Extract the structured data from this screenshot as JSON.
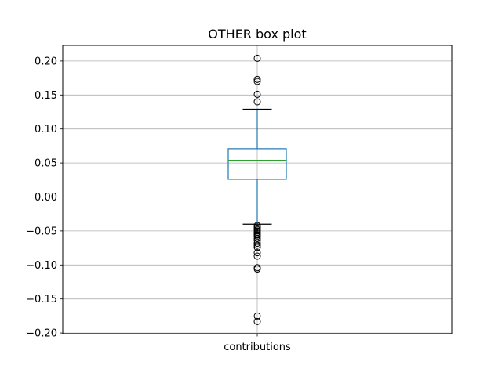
{
  "chart_data": {
    "type": "box",
    "title": "OTHER box plot",
    "xlabel": "",
    "ylabel": "",
    "categories": [
      "contributions"
    ],
    "ylim": [
      -0.2,
      0.22
    ],
    "yticks": [
      -0.2,
      -0.15,
      -0.1,
      -0.05,
      0.0,
      0.05,
      0.1,
      0.15,
      0.2
    ],
    "ytick_labels": [
      "−0.20",
      "−0.15",
      "−0.10",
      "−0.05",
      "0.00",
      "0.05",
      "0.10",
      "0.15",
      "0.20"
    ],
    "grid": true,
    "boxes": [
      {
        "category": "contributions",
        "whisker_low": -0.04,
        "q1": 0.026,
        "median": 0.054,
        "q3": 0.071,
        "whisker_high": 0.129,
        "outliers": [
          0.204,
          0.173,
          0.17,
          0.151,
          0.14,
          -0.042,
          -0.044,
          -0.046,
          -0.048,
          -0.05,
          -0.052,
          -0.054,
          -0.056,
          -0.058,
          -0.061,
          -0.064,
          -0.068,
          -0.071,
          -0.074,
          -0.082,
          -0.087,
          -0.104,
          -0.106,
          -0.175,
          -0.183
        ]
      }
    ],
    "colors": {
      "box": "#1f77b4",
      "median": "#2ca02c",
      "outlier_edge": "#000000",
      "grid": "#b0b0b0"
    }
  }
}
